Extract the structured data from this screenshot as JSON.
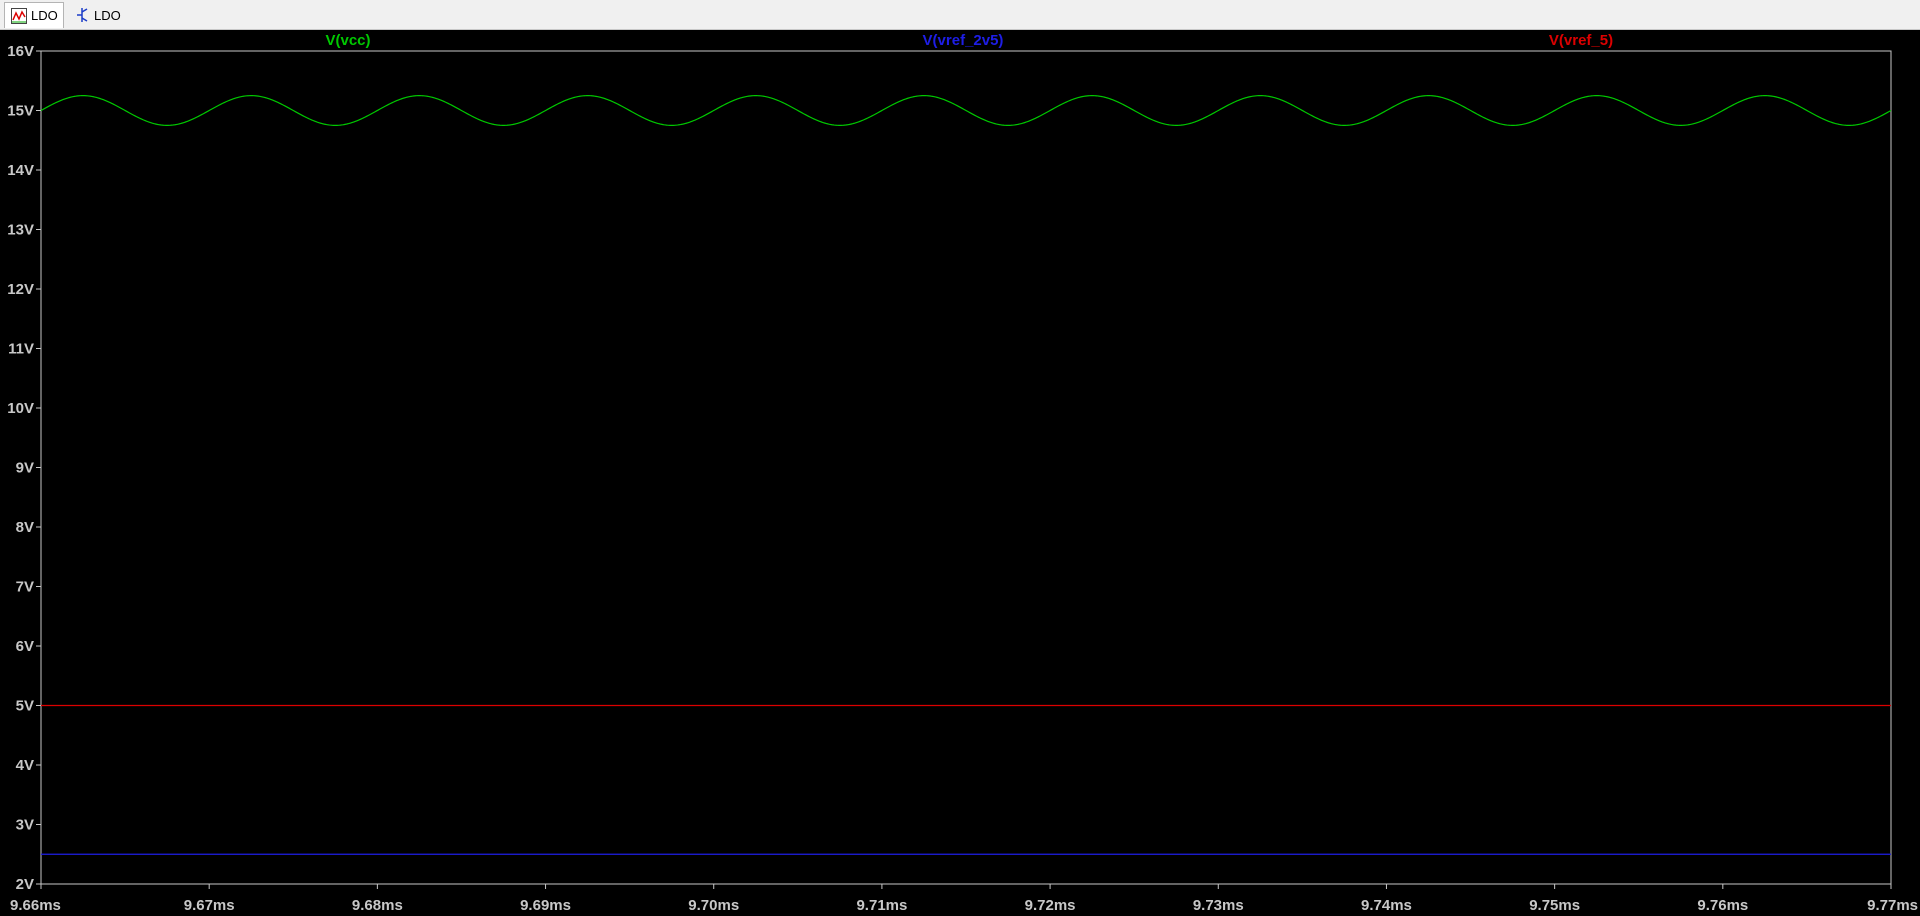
{
  "tabs": [
    {
      "label": "LDO",
      "icon": "waveform-icon",
      "active": true
    },
    {
      "label": "LDO",
      "icon": "schematic-icon",
      "active": false
    }
  ],
  "chart_data": {
    "type": "line",
    "title": "",
    "xlabel": "",
    "ylabel": "",
    "xlim": [
      9.66,
      9.77
    ],
    "ylim": [
      2,
      16
    ],
    "x_unit": "ms",
    "y_unit": "V",
    "x_ticks": [
      "9.66ms",
      "9.67ms",
      "9.68ms",
      "9.69ms",
      "9.70ms",
      "9.71ms",
      "9.72ms",
      "9.73ms",
      "9.74ms",
      "9.75ms",
      "9.76ms",
      "9.77ms"
    ],
    "y_ticks": [
      "2V",
      "3V",
      "4V",
      "5V",
      "6V",
      "7V",
      "8V",
      "9V",
      "10V",
      "11V",
      "12V",
      "13V",
      "14V",
      "15V",
      "16V"
    ],
    "grid": false,
    "legend_placement": "top",
    "series": [
      {
        "name": "V(vcc)",
        "color": "#00c800",
        "kind": "sine",
        "offset": 15.0,
        "amplitude": 0.25,
        "period_ms": 0.01,
        "phase_start_ms": 9.66
      },
      {
        "name": "V(vref_2v5)",
        "color": "#1e1ee6",
        "kind": "constant",
        "value": 2.5
      },
      {
        "name": "V(vref_5)",
        "color": "#dc0000",
        "kind": "constant",
        "value": 5.0
      }
    ]
  }
}
